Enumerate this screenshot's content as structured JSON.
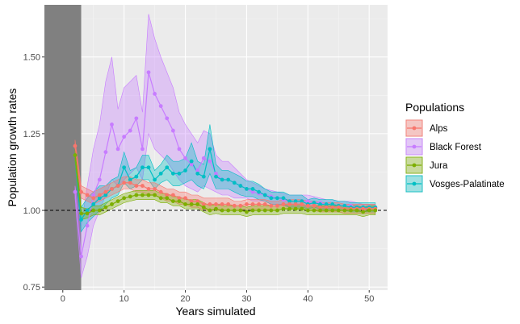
{
  "chart_data": {
    "type": "line",
    "title": "",
    "xlabel": "Years simulated",
    "ylabel": "Population growth rates",
    "xlim": [
      -3,
      53
    ],
    "ylim": [
      0.74,
      1.67
    ],
    "x_ticks": [
      0,
      10,
      20,
      30,
      40,
      50
    ],
    "y_ticks": [
      0.75,
      1.0,
      1.25,
      1.5
    ],
    "y_tick_labels": [
      "0.75",
      "1.00",
      "1.25",
      "1.50"
    ],
    "reference_line": 1.0,
    "shaded_region": [
      -3,
      3
    ],
    "grid": true,
    "legend": {
      "title": "Populations",
      "position": "right"
    },
    "x": [
      2,
      3,
      4,
      5,
      6,
      7,
      8,
      9,
      10,
      11,
      12,
      13,
      14,
      15,
      16,
      17,
      18,
      19,
      20,
      21,
      22,
      23,
      24,
      25,
      26,
      27,
      28,
      29,
      30,
      31,
      32,
      33,
      34,
      35,
      36,
      37,
      38,
      39,
      40,
      41,
      42,
      43,
      44,
      45,
      46,
      47,
      48,
      49,
      50,
      51
    ],
    "series": [
      {
        "name": "Alps",
        "color": "#F8766D",
        "values": [
          1.21,
          1.06,
          1.05,
          1.04,
          1.05,
          1.06,
          1.07,
          1.08,
          1.09,
          1.09,
          1.08,
          1.08,
          1.07,
          1.07,
          1.06,
          1.05,
          1.05,
          1.04,
          1.04,
          1.03,
          1.03,
          1.02,
          1.02,
          1.02,
          1.02,
          1.02,
          1.015,
          1.015,
          1.02,
          1.02,
          1.02,
          1.02,
          1.015,
          1.015,
          1.02,
          1.02,
          1.02,
          1.02,
          1.015,
          1.015,
          1.01,
          1.01,
          1.01,
          1.01,
          1.005,
          1.005,
          1.005,
          1.005,
          1.005,
          1.005
        ],
        "lower": [
          1.19,
          1.04,
          1.03,
          1.02,
          1.03,
          1.04,
          1.05,
          1.06,
          1.07,
          1.07,
          1.06,
          1.06,
          1.05,
          1.05,
          1.04,
          1.03,
          1.03,
          1.02,
          1.02,
          1.01,
          1.01,
          1.0,
          1.0,
          1.0,
          1.0,
          1.0,
          1.0,
          1.0,
          1.005,
          1.005,
          1.005,
          1.005,
          1.0,
          1.0,
          1.005,
          1.005,
          1.005,
          1.005,
          1.0,
          1.0,
          0.995,
          0.995,
          0.995,
          0.995,
          0.99,
          0.99,
          0.99,
          0.99,
          0.99,
          0.99
        ],
        "upper": [
          1.23,
          1.08,
          1.07,
          1.06,
          1.07,
          1.08,
          1.09,
          1.1,
          1.11,
          1.11,
          1.1,
          1.1,
          1.09,
          1.09,
          1.08,
          1.07,
          1.07,
          1.06,
          1.06,
          1.05,
          1.05,
          1.04,
          1.04,
          1.04,
          1.04,
          1.04,
          1.03,
          1.03,
          1.035,
          1.035,
          1.035,
          1.035,
          1.03,
          1.03,
          1.035,
          1.035,
          1.035,
          1.035,
          1.03,
          1.03,
          1.025,
          1.025,
          1.025,
          1.025,
          1.02,
          1.02,
          1.02,
          1.02,
          1.02,
          1.02
        ]
      },
      {
        "name": "Black Forest",
        "color": "#C77CFF",
        "values": [
          1.06,
          0.85,
          0.95,
          1.05,
          1.1,
          1.19,
          1.28,
          1.2,
          1.24,
          1.26,
          1.3,
          1.2,
          1.45,
          1.38,
          1.34,
          1.3,
          1.26,
          1.2,
          1.17,
          1.15,
          1.13,
          1.17,
          1.16,
          1.12,
          1.1,
          1.1,
          1.09,
          1.08,
          1.07,
          1.06,
          1.055,
          1.05,
          1.045,
          1.04,
          1.035,
          1.03,
          1.03,
          1.03,
          1.03,
          1.025,
          1.025,
          1.02,
          1.02,
          1.015,
          1.015,
          1.015,
          1.01,
          1.01,
          1.01,
          1.01
        ],
        "lower": [
          1.04,
          0.78,
          0.85,
          0.95,
          1.0,
          1.05,
          1.1,
          1.08,
          1.1,
          1.12,
          1.14,
          1.1,
          1.25,
          1.2,
          1.18,
          1.16,
          1.13,
          1.1,
          1.08,
          1.07,
          1.06,
          1.08,
          1.07,
          1.06,
          1.05,
          1.05,
          1.04,
          1.04,
          1.04,
          1.03,
          1.03,
          1.03,
          1.02,
          1.02,
          1.015,
          1.01,
          1.01,
          1.01,
          1.01,
          1.005,
          1.005,
          1.0,
          1.0,
          1.0,
          1.0,
          1.0,
          1.0,
          1.0,
          1.0,
          1.0
        ],
        "upper": [
          1.08,
          0.95,
          1.08,
          1.2,
          1.28,
          1.42,
          1.5,
          1.33,
          1.4,
          1.42,
          1.44,
          1.32,
          1.64,
          1.56,
          1.5,
          1.45,
          1.4,
          1.32,
          1.28,
          1.25,
          1.22,
          1.26,
          1.25,
          1.18,
          1.16,
          1.16,
          1.14,
          1.12,
          1.1,
          1.09,
          1.08,
          1.07,
          1.065,
          1.06,
          1.055,
          1.05,
          1.05,
          1.05,
          1.05,
          1.045,
          1.04,
          1.035,
          1.035,
          1.03,
          1.03,
          1.03,
          1.025,
          1.02,
          1.02,
          1.02
        ]
      },
      {
        "name": "Jura",
        "color": "#7CAE00",
        "values": [
          1.18,
          0.99,
          0.99,
          1.0,
          1.0,
          1.01,
          1.02,
          1.03,
          1.04,
          1.045,
          1.05,
          1.05,
          1.05,
          1.05,
          1.04,
          1.04,
          1.03,
          1.03,
          1.02,
          1.02,
          1.02,
          1.01,
          1.0,
          1.005,
          1.0,
          1.0,
          1.0,
          1.0,
          0.995,
          1.0,
          1.0,
          1.0,
          1.0,
          1.0,
          1.005,
          1.005,
          1.005,
          1.005,
          1.0,
          1.0,
          1.0,
          1.0,
          1.0,
          1.0,
          1.0,
          1.0,
          1.0,
          0.995,
          1.0,
          1.0
        ],
        "lower": [
          1.16,
          0.97,
          0.975,
          0.985,
          0.985,
          0.995,
          1.005,
          1.015,
          1.025,
          1.03,
          1.035,
          1.035,
          1.035,
          1.035,
          1.025,
          1.025,
          1.015,
          1.015,
          1.005,
          1.005,
          1.005,
          0.995,
          0.985,
          0.99,
          0.985,
          0.985,
          0.985,
          0.985,
          0.98,
          0.985,
          0.985,
          0.985,
          0.985,
          0.985,
          0.99,
          0.99,
          0.99,
          0.99,
          0.985,
          0.985,
          0.985,
          0.985,
          0.985,
          0.985,
          0.985,
          0.985,
          0.985,
          0.98,
          0.985,
          0.985
        ],
        "upper": [
          1.2,
          1.01,
          1.005,
          1.015,
          1.015,
          1.025,
          1.035,
          1.045,
          1.055,
          1.06,
          1.065,
          1.065,
          1.065,
          1.065,
          1.055,
          1.055,
          1.045,
          1.045,
          1.035,
          1.035,
          1.035,
          1.025,
          1.015,
          1.02,
          1.015,
          1.015,
          1.015,
          1.015,
          1.01,
          1.015,
          1.015,
          1.015,
          1.015,
          1.015,
          1.02,
          1.02,
          1.02,
          1.02,
          1.015,
          1.015,
          1.015,
          1.015,
          1.015,
          1.015,
          1.015,
          1.015,
          1.015,
          1.01,
          1.015,
          1.015
        ]
      },
      {
        "name": "Vosges-Palatinate",
        "color": "#00BFC4",
        "values": [
          1.18,
          0.97,
          1.0,
          1.02,
          1.04,
          1.05,
          1.07,
          1.08,
          1.14,
          1.1,
          1.11,
          1.14,
          1.14,
          1.1,
          1.12,
          1.14,
          1.12,
          1.12,
          1.13,
          1.16,
          1.12,
          1.11,
          1.2,
          1.11,
          1.1,
          1.1,
          1.09,
          1.08,
          1.07,
          1.07,
          1.06,
          1.05,
          1.04,
          1.04,
          1.04,
          1.03,
          1.03,
          1.03,
          1.02,
          1.025,
          1.02,
          1.02,
          1.02,
          1.015,
          1.015,
          1.01,
          1.01,
          1.01,
          1.01,
          1.01
        ],
        "lower": [
          1.16,
          0.93,
          0.96,
          0.98,
          1.0,
          1.02,
          1.04,
          1.05,
          1.09,
          1.07,
          1.08,
          1.1,
          1.1,
          1.07,
          1.09,
          1.1,
          1.08,
          1.08,
          1.09,
          1.1,
          1.08,
          1.07,
          1.12,
          1.07,
          1.07,
          1.07,
          1.06,
          1.05,
          1.045,
          1.045,
          1.035,
          1.03,
          1.02,
          1.02,
          1.02,
          1.01,
          1.01,
          1.01,
          1.005,
          1.01,
          1.005,
          1.005,
          1.005,
          1.0,
          1.0,
          0.995,
          0.995,
          0.995,
          0.995,
          0.995
        ],
        "upper": [
          1.2,
          1.01,
          1.04,
          1.06,
          1.08,
          1.08,
          1.1,
          1.11,
          1.19,
          1.13,
          1.14,
          1.18,
          1.18,
          1.13,
          1.15,
          1.18,
          1.16,
          1.16,
          1.17,
          1.22,
          1.16,
          1.15,
          1.28,
          1.15,
          1.13,
          1.13,
          1.12,
          1.11,
          1.095,
          1.095,
          1.085,
          1.07,
          1.06,
          1.06,
          1.06,
          1.05,
          1.05,
          1.05,
          1.035,
          1.04,
          1.035,
          1.035,
          1.035,
          1.03,
          1.03,
          1.025,
          1.025,
          1.025,
          1.025,
          1.025
        ]
      }
    ]
  }
}
